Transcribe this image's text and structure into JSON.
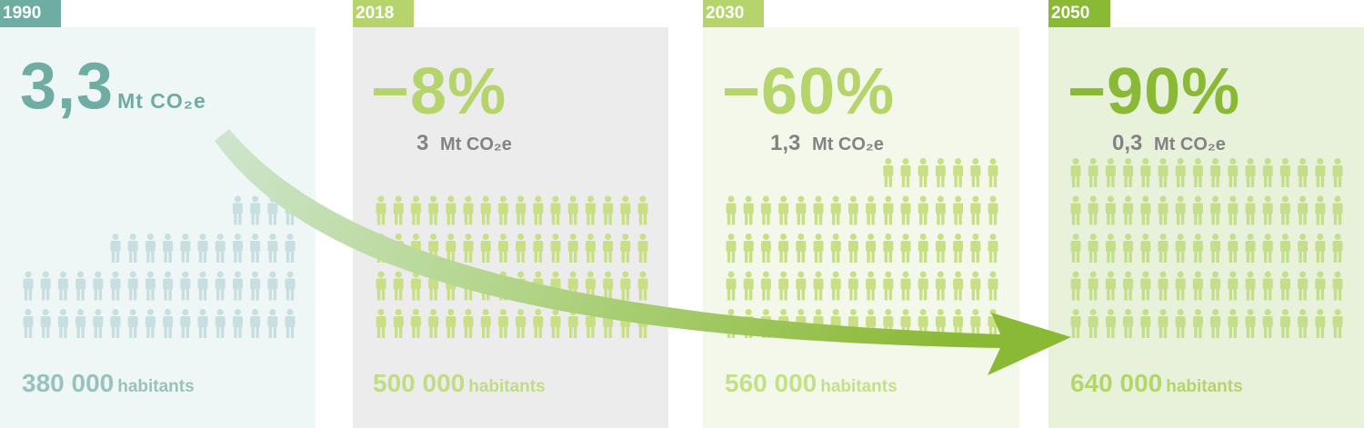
{
  "periods": [
    {
      "year": "1990",
      "headline": "3,3",
      "headline_unit": "Mt CO₂e",
      "emissions_value": "",
      "emissions_unit": "",
      "population_number": "380 000",
      "population_word": "habitants",
      "people_rows": [
        16,
        16,
        11,
        4
      ],
      "colors": {
        "tag": "#6fada2",
        "panel": "#eef6f6",
        "headline": "#6fada2",
        "emissions": "#6fada2",
        "population": "#9ac2bd",
        "people": "#c7dfe0"
      }
    },
    {
      "year": "2018",
      "headline": "−8%",
      "headline_unit": "",
      "emissions_value": "3",
      "emissions_unit": "Mt CO₂e",
      "population_number": "500 000",
      "population_word": "habitants",
      "people_rows": [
        16,
        16,
        16,
        16
      ],
      "colors": {
        "tag": "#b5d46b",
        "panel": "#ececec",
        "headline": "#b5d46b",
        "emissions": "#838383",
        "population": "#c2dc84",
        "people": "#c9df85"
      }
    },
    {
      "year": "2030",
      "headline": "−60%",
      "headline_unit": "",
      "emissions_value": "1,3",
      "emissions_unit": "Mt CO₂e",
      "population_number": "560 000",
      "population_word": "habitants",
      "people_rows": [
        16,
        16,
        16,
        16,
        7
      ],
      "colors": {
        "tag": "#b5d46b",
        "panel": "#f3f8ea",
        "headline": "#b5d46b",
        "emissions": "#838383",
        "population": "#c6df89",
        "people": "#c9df85"
      }
    },
    {
      "year": "2050",
      "headline": "−90%",
      "headline_unit": "",
      "emissions_value": "0,3",
      "emissions_unit": "Mt CO₂e",
      "population_number": "640 000",
      "population_word": "habitants",
      "people_rows": [
        16,
        16,
        16,
        16,
        16
      ],
      "colors": {
        "tag": "#8ab935",
        "panel": "#e8f1da",
        "headline": "#8ab935",
        "emissions": "#838383",
        "population": "#b5d46b",
        "people": "#c4de8c"
      }
    }
  ],
  "arrow_colors": {
    "start": "#cfe5cf",
    "mid": "#b3d58a",
    "end": "#8ab935"
  }
}
